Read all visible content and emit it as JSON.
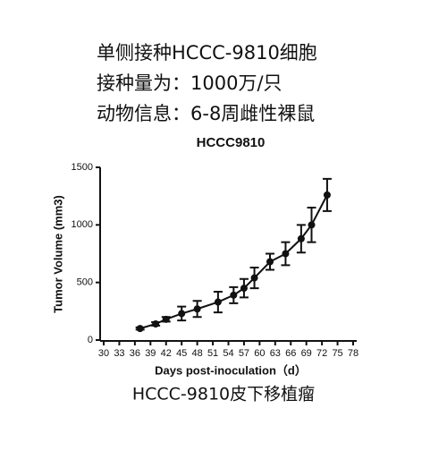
{
  "header": {
    "lines": [
      "单侧接种HCCC-9810细胞",
      "接种量为：1000万/只",
      "动物信息：6-8周雌性裸鼠"
    ]
  },
  "chart_data": {
    "type": "line",
    "title": "HCCC9810",
    "y_label": "Tumor Volume (mm3)",
    "x_label": "Days post-inoculation（d）",
    "x": [
      37,
      40,
      42,
      45,
      48,
      52,
      55,
      57,
      59,
      62,
      65,
      68,
      70,
      73
    ],
    "values": [
      100,
      140,
      180,
      230,
      270,
      330,
      390,
      450,
      540,
      680,
      750,
      880,
      1000,
      1260
    ],
    "errors": [
      10,
      15,
      20,
      60,
      70,
      90,
      70,
      80,
      90,
      70,
      100,
      120,
      150,
      140
    ],
    "color": "#111111",
    "xlim": [
      30,
      78
    ],
    "xticks": [
      30,
      33,
      36,
      39,
      42,
      45,
      48,
      51,
      54,
      57,
      60,
      63,
      66,
      69,
      72,
      75,
      78
    ],
    "ylim": [
      0,
      1500
    ],
    "yticks": [
      0,
      500,
      1000,
      1500
    ]
  },
  "caption": "HCCC-9810皮下移植瘤"
}
